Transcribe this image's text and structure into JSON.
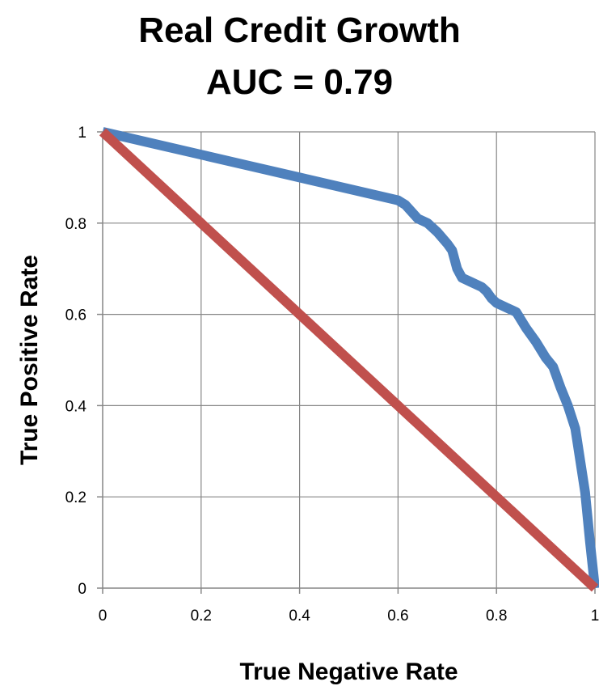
{
  "chart_data": {
    "type": "line",
    "title_lines": [
      "Real Credit Growth",
      "AUC = 0.79"
    ],
    "xlabel": "True Negative Rate",
    "ylabel": "True Positive Rate",
    "xlim": [
      0,
      1
    ],
    "ylim": [
      0,
      1
    ],
    "x_ticks": [
      "0",
      "0.2",
      "0.4",
      "0.6",
      "0.8",
      "1"
    ],
    "y_ticks": [
      "0",
      "0.2",
      "0.4",
      "0.6",
      "0.8",
      "1"
    ],
    "grid": true,
    "legend": "none",
    "series": [
      {
        "color": "#4F81BD",
        "points": [
          [
            0.0,
            1.0
          ],
          [
            0.1,
            0.975
          ],
          [
            0.2,
            0.95
          ],
          [
            0.3,
            0.925
          ],
          [
            0.4,
            0.9
          ],
          [
            0.5,
            0.875
          ],
          [
            0.6,
            0.85
          ],
          [
            0.615,
            0.84
          ],
          [
            0.64,
            0.81
          ],
          [
            0.66,
            0.8
          ],
          [
            0.68,
            0.78
          ],
          [
            0.7,
            0.755
          ],
          [
            0.71,
            0.74
          ],
          [
            0.715,
            0.72
          ],
          [
            0.72,
            0.7
          ],
          [
            0.73,
            0.68
          ],
          [
            0.75,
            0.67
          ],
          [
            0.77,
            0.66
          ],
          [
            0.78,
            0.65
          ],
          [
            0.79,
            0.635
          ],
          [
            0.8,
            0.625
          ],
          [
            0.82,
            0.615
          ],
          [
            0.84,
            0.605
          ],
          [
            0.86,
            0.57
          ],
          [
            0.88,
            0.54
          ],
          [
            0.9,
            0.505
          ],
          [
            0.915,
            0.485
          ],
          [
            0.93,
            0.44
          ],
          [
            0.945,
            0.4
          ],
          [
            0.96,
            0.35
          ],
          [
            0.97,
            0.28
          ],
          [
            0.98,
            0.21
          ],
          [
            0.99,
            0.1
          ],
          [
            1.0,
            0.0
          ]
        ]
      },
      {
        "color": "#C0504D",
        "points": [
          [
            0.0,
            1.0
          ],
          [
            1.0,
            0.0
          ]
        ]
      }
    ]
  }
}
